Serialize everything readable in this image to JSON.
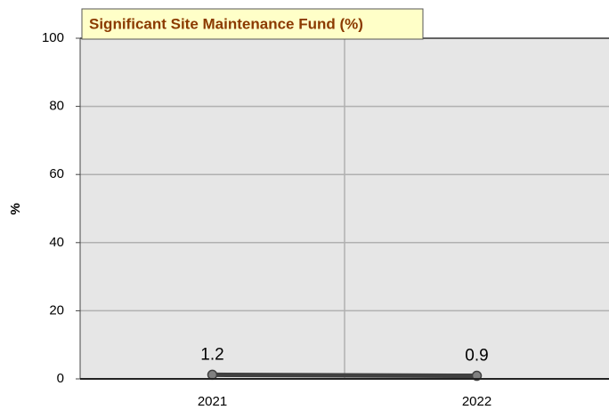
{
  "chart_data": {
    "type": "line",
    "title": "Significant Site Maintenance Fund (%)",
    "ylabel": "%",
    "categories": [
      "2021",
      "2022"
    ],
    "values": [
      1.2,
      0.9
    ],
    "color": "#404040",
    "ylim": [
      0,
      100
    ],
    "yticks": [
      0,
      20,
      40,
      60,
      80,
      100
    ],
    "grid": true
  }
}
